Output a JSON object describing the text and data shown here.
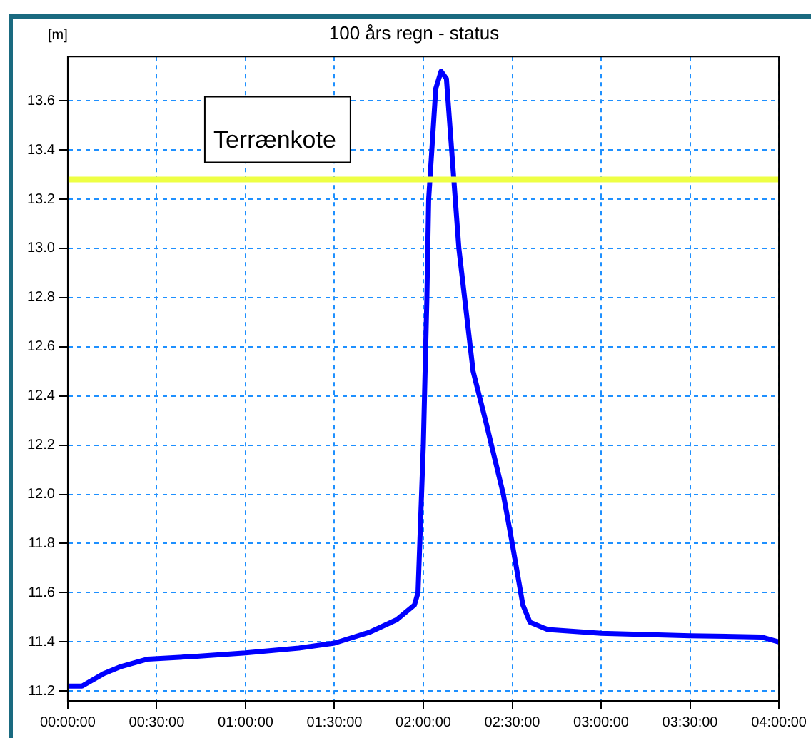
{
  "chart_data": {
    "type": "line",
    "title": "100 års regn - status",
    "ylabel": "[m]",
    "x": [
      0,
      0.08,
      0.2,
      0.3,
      0.45,
      0.7,
      1.0,
      1.3,
      1.5,
      1.7,
      1.85,
      1.95,
      1.97,
      1.98,
      2.0,
      2.02,
      2.03,
      2.07,
      2.1,
      2.13,
      2.2,
      2.28,
      2.35,
      2.45,
      2.5,
      2.56,
      2.6,
      2.7,
      3.0,
      3.5,
      3.9,
      4.0
    ],
    "series": [
      {
        "color": "#0000ff",
        "values": [
          11.22,
          11.22,
          11.27,
          11.3,
          11.33,
          11.34,
          11.355,
          11.375,
          11.395,
          11.44,
          11.49,
          11.55,
          11.6,
          11.8,
          12.2,
          12.8,
          13.2,
          13.65,
          13.72,
          13.69,
          13.0,
          12.5,
          12.3,
          12.0,
          11.8,
          11.55,
          11.48,
          11.45,
          11.435,
          11.425,
          11.42,
          11.4
        ]
      }
    ],
    "xlim": [
      0,
      4
    ],
    "xticks": [
      {
        "value": 0,
        "label": "00:00:00"
      },
      {
        "value": 0.5,
        "label": "00:30:00"
      },
      {
        "value": 1,
        "label": "01:00:00"
      },
      {
        "value": 1.5,
        "label": "01:30:00"
      },
      {
        "value": 2,
        "label": "02:00:00"
      },
      {
        "value": 2.5,
        "label": "02:30:00"
      },
      {
        "value": 3,
        "label": "03:00:00"
      },
      {
        "value": 3.5,
        "label": "03:30:00"
      },
      {
        "value": 4,
        "label": "04:00:00"
      }
    ],
    "ylim": [
      11.16,
      13.78
    ],
    "yticks": [
      11.2,
      11.4,
      11.6,
      11.8,
      {
        "value": 12,
        "label": "12.0"
      },
      12.2,
      12.4,
      12.6,
      12.8,
      {
        "value": 13,
        "label": "13.0"
      },
      13.2,
      13.4,
      13.6
    ],
    "ref_lines": [
      {
        "axis": "y",
        "value": 13.28,
        "label": "Terrænkote",
        "color": "#eeff44"
      }
    ],
    "grid": true,
    "legend": false,
    "marker": "none",
    "line_style": "solid"
  }
}
